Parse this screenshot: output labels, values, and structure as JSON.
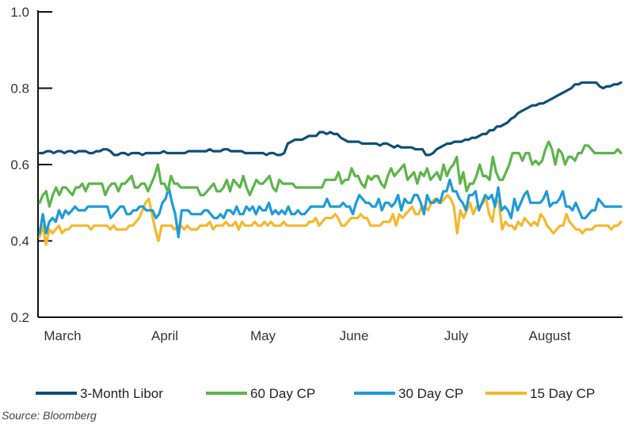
{
  "chart_data": {
    "type": "line",
    "title": "",
    "xlabel": "",
    "ylabel": "",
    "ylim": [
      0.2,
      1.0
    ],
    "y_ticks": [
      "0.2",
      "0.4",
      "0.6",
      "0.8",
      "1.0"
    ],
    "x_tick_labels": [
      "March",
      "April",
      "May",
      "June",
      "July",
      "August"
    ],
    "grid": false,
    "legend_position": "bottom",
    "source": "Source: Bloomberg",
    "series": [
      {
        "name": "3-Month Libor",
        "color": "#0d4f7a",
        "values": [
          0.63,
          0.63,
          0.635,
          0.635,
          0.63,
          0.635,
          0.635,
          0.63,
          0.635,
          0.635,
          0.63,
          0.635,
          0.635,
          0.635,
          0.63,
          0.63,
          0.635,
          0.635,
          0.64,
          0.64,
          0.635,
          0.625,
          0.625,
          0.63,
          0.63,
          0.625,
          0.63,
          0.63,
          0.63,
          0.625,
          0.63,
          0.63,
          0.63,
          0.63,
          0.63,
          0.635,
          0.63,
          0.63,
          0.63,
          0.63,
          0.63,
          0.63,
          0.635,
          0.635,
          0.635,
          0.635,
          0.635,
          0.635,
          0.64,
          0.635,
          0.635,
          0.635,
          0.64,
          0.64,
          0.635,
          0.635,
          0.635,
          0.635,
          0.63,
          0.63,
          0.63,
          0.63,
          0.63,
          0.63,
          0.625,
          0.63,
          0.63,
          0.625,
          0.625,
          0.63,
          0.655,
          0.66,
          0.665,
          0.665,
          0.665,
          0.67,
          0.675,
          0.675,
          0.675,
          0.685,
          0.685,
          0.68,
          0.685,
          0.68,
          0.68,
          0.67,
          0.665,
          0.66,
          0.66,
          0.66,
          0.66,
          0.655,
          0.655,
          0.655,
          0.655,
          0.655,
          0.65,
          0.655,
          0.655,
          0.65,
          0.645,
          0.65,
          0.645,
          0.645,
          0.645,
          0.645,
          0.64,
          0.64,
          0.64,
          0.625,
          0.625,
          0.63,
          0.64,
          0.645,
          0.65,
          0.655,
          0.655,
          0.66,
          0.66,
          0.66,
          0.665,
          0.665,
          0.67,
          0.67,
          0.675,
          0.68,
          0.68,
          0.69,
          0.69,
          0.7,
          0.7,
          0.705,
          0.71,
          0.72,
          0.725,
          0.735,
          0.74,
          0.745,
          0.75,
          0.755,
          0.755,
          0.76,
          0.76,
          0.765,
          0.77,
          0.775,
          0.78,
          0.785,
          0.79,
          0.795,
          0.8,
          0.81,
          0.81,
          0.815,
          0.815,
          0.815,
          0.815,
          0.815,
          0.805,
          0.8,
          0.805,
          0.805,
          0.81,
          0.81,
          0.815
        ]
      },
      {
        "name": "60 Day CP",
        "color": "#5cb54b",
        "values": [
          0.5,
          0.52,
          0.53,
          0.49,
          0.52,
          0.54,
          0.52,
          0.54,
          0.54,
          0.53,
          0.52,
          0.54,
          0.54,
          0.55,
          0.53,
          0.55,
          0.55,
          0.55,
          0.55,
          0.55,
          0.52,
          0.54,
          0.55,
          0.55,
          0.53,
          0.55,
          0.55,
          0.56,
          0.57,
          0.54,
          0.54,
          0.55,
          0.55,
          0.53,
          0.55,
          0.57,
          0.6,
          0.55,
          0.55,
          0.53,
          0.57,
          0.55,
          0.55,
          0.54,
          0.54,
          0.54,
          0.54,
          0.54,
          0.54,
          0.52,
          0.52,
          0.53,
          0.54,
          0.55,
          0.53,
          0.53,
          0.54,
          0.56,
          0.53,
          0.56,
          0.55,
          0.54,
          0.57,
          0.54,
          0.52,
          0.54,
          0.56,
          0.55,
          0.55,
          0.56,
          0.57,
          0.54,
          0.53,
          0.56,
          0.55,
          0.55,
          0.55,
          0.55,
          0.54,
          0.54,
          0.54,
          0.54,
          0.54,
          0.54,
          0.54,
          0.54,
          0.54,
          0.56,
          0.56,
          0.56,
          0.56,
          0.58,
          0.55,
          0.56,
          0.56,
          0.59,
          0.57,
          0.57,
          0.55,
          0.54,
          0.57,
          0.56,
          0.57,
          0.57,
          0.55,
          0.54,
          0.57,
          0.59,
          0.57,
          0.58,
          0.59,
          0.6,
          0.56,
          0.57,
          0.58,
          0.55,
          0.58,
          0.57,
          0.59,
          0.56,
          0.57,
          0.58,
          0.56,
          0.6,
          0.57,
          0.59,
          0.6,
          0.62,
          0.55,
          0.58,
          0.53,
          0.55,
          0.55,
          0.57,
          0.6,
          0.57,
          0.57,
          0.56,
          0.62,
          0.58,
          0.56,
          0.56,
          0.58,
          0.6,
          0.63,
          0.63,
          0.63,
          0.61,
          0.63,
          0.63,
          0.6,
          0.61,
          0.6,
          0.61,
          0.64,
          0.66,
          0.64,
          0.6,
          0.64,
          0.63,
          0.6,
          0.62,
          0.62,
          0.61,
          0.63,
          0.63,
          0.65,
          0.65,
          0.64,
          0.63,
          0.63,
          0.63,
          0.63,
          0.63,
          0.63,
          0.63,
          0.64,
          0.63
        ]
      },
      {
        "name": "30 Day CP",
        "color": "#1e9bd7",
        "values": [
          0.42,
          0.47,
          0.42,
          0.45,
          0.46,
          0.45,
          0.48,
          0.46,
          0.48,
          0.47,
          0.48,
          0.49,
          0.48,
          0.48,
          0.48,
          0.49,
          0.49,
          0.49,
          0.49,
          0.49,
          0.49,
          0.49,
          0.46,
          0.47,
          0.48,
          0.49,
          0.49,
          0.47,
          0.47,
          0.48,
          0.48,
          0.49,
          0.49,
          0.48,
          0.48,
          0.48,
          0.46,
          0.47,
          0.5,
          0.51,
          0.54,
          0.5,
          0.47,
          0.41,
          0.48,
          0.48,
          0.48,
          0.47,
          0.47,
          0.47,
          0.47,
          0.48,
          0.48,
          0.47,
          0.46,
          0.46,
          0.47,
          0.46,
          0.48,
          0.48,
          0.47,
          0.49,
          0.47,
          0.47,
          0.49,
          0.48,
          0.49,
          0.47,
          0.49,
          0.48,
          0.48,
          0.5,
          0.47,
          0.48,
          0.47,
          0.48,
          0.47,
          0.49,
          0.47,
          0.47,
          0.48,
          0.47,
          0.47,
          0.48,
          0.49,
          0.49,
          0.49,
          0.49,
          0.49,
          0.51,
          0.49,
          0.49,
          0.49,
          0.49,
          0.5,
          0.49,
          0.49,
          0.47,
          0.5,
          0.52,
          0.51,
          0.5,
          0.5,
          0.49,
          0.49,
          0.51,
          0.48,
          0.5,
          0.5,
          0.49,
          0.5,
          0.52,
          0.48,
          0.51,
          0.5,
          0.5,
          0.52,
          0.52,
          0.5,
          0.47,
          0.52,
          0.5,
          0.5,
          0.51,
          0.5,
          0.53,
          0.53,
          0.56,
          0.53,
          0.53,
          0.51,
          0.5,
          0.48,
          0.52,
          0.52,
          0.53,
          0.48,
          0.5,
          0.52,
          0.51,
          0.52,
          0.49,
          0.54,
          0.48,
          0.49,
          0.48,
          0.46,
          0.51,
          0.48,
          0.5,
          0.52,
          0.53,
          0.5,
          0.5,
          0.5,
          0.5,
          0.51,
          0.53,
          0.49,
          0.5,
          0.5,
          0.51,
          0.53,
          0.49,
          0.49,
          0.48,
          0.5,
          0.48,
          0.46,
          0.46,
          0.47,
          0.48,
          0.48,
          0.51,
          0.5,
          0.49,
          0.49,
          0.49,
          0.49,
          0.49,
          0.49
        ]
      },
      {
        "name": "15 Day CP",
        "color": "#f5b82e",
        "values": [
          0.41,
          0.44,
          0.39,
          0.43,
          0.42,
          0.43,
          0.44,
          0.42,
          0.43,
          0.43,
          0.44,
          0.44,
          0.44,
          0.44,
          0.44,
          0.44,
          0.43,
          0.44,
          0.44,
          0.44,
          0.44,
          0.44,
          0.43,
          0.44,
          0.43,
          0.43,
          0.43,
          0.43,
          0.44,
          0.44,
          0.45,
          0.46,
          0.48,
          0.5,
          0.51,
          0.47,
          0.43,
          0.4,
          0.44,
          0.44,
          0.44,
          0.44,
          0.43,
          0.44,
          0.44,
          0.43,
          0.44,
          0.43,
          0.43,
          0.43,
          0.44,
          0.44,
          0.44,
          0.45,
          0.43,
          0.44,
          0.44,
          0.44,
          0.45,
          0.44,
          0.44,
          0.45,
          0.43,
          0.45,
          0.44,
          0.44,
          0.44,
          0.45,
          0.44,
          0.44,
          0.45,
          0.44,
          0.45,
          0.44,
          0.44,
          0.44,
          0.45,
          0.44,
          0.44,
          0.44,
          0.44,
          0.44,
          0.44,
          0.44,
          0.45,
          0.45,
          0.46,
          0.44,
          0.45,
          0.46,
          0.46,
          0.46,
          0.47,
          0.46,
          0.44,
          0.44,
          0.45,
          0.46,
          0.46,
          0.46,
          0.47,
          0.46,
          0.46,
          0.44,
          0.44,
          0.44,
          0.44,
          0.45,
          0.45,
          0.45,
          0.47,
          0.44,
          0.47,
          0.46,
          0.47,
          0.48,
          0.49,
          0.47,
          0.47,
          0.49,
          0.49,
          0.48,
          0.5,
          0.51,
          0.5,
          0.5,
          0.51,
          0.52,
          0.51,
          0.49,
          0.42,
          0.48,
          0.46,
          0.48,
          0.5,
          0.47,
          0.49,
          0.49,
          0.5,
          0.51,
          0.47,
          0.45,
          0.51,
          0.5,
          0.43,
          0.45,
          0.44,
          0.44,
          0.43,
          0.45,
          0.44,
          0.46,
          0.45,
          0.44,
          0.45,
          0.44,
          0.47,
          0.46,
          0.44,
          0.43,
          0.42,
          0.43,
          0.44,
          0.44,
          0.47,
          0.45,
          0.44,
          0.43,
          0.43,
          0.42,
          0.43,
          0.43,
          0.43,
          0.44,
          0.44,
          0.44,
          0.44,
          0.44,
          0.43,
          0.44,
          0.44,
          0.45
        ]
      }
    ]
  }
}
